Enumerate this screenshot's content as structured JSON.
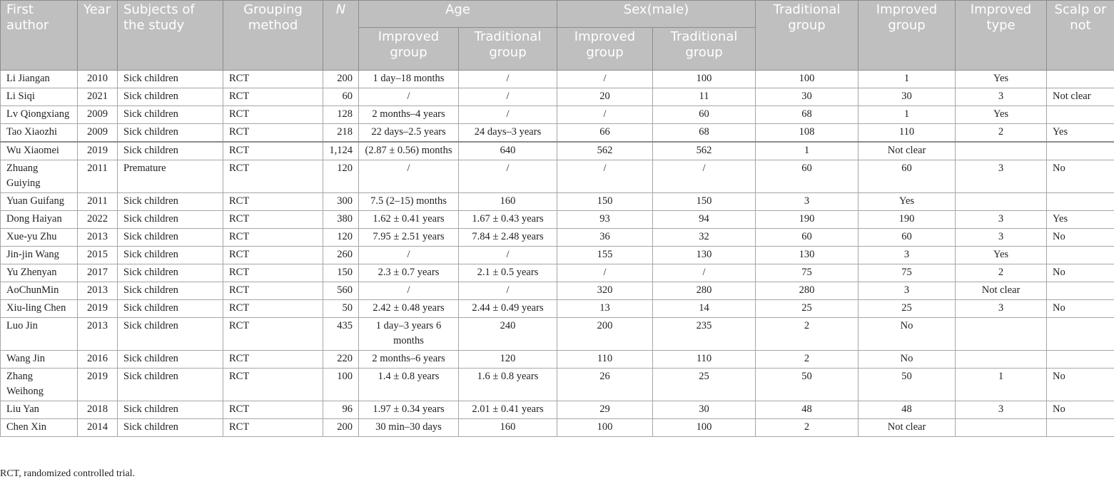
{
  "headers": {
    "first_author": "First author",
    "year": "Year",
    "subjects": "Subjects of the study",
    "grouping": "Grouping method",
    "n": "N",
    "age": "Age",
    "sex": "Sex(male)",
    "traditional_group": "Traditional group",
    "improved_group": "Improved group",
    "improved_type": "Improved type",
    "scalp": "Scalp or not",
    "age_improved": "Improved group",
    "age_traditional": "Traditional group",
    "sex_improved": "Improved group",
    "sex_traditional": "Traditional group"
  },
  "rows": [
    {
      "author": "Li Jiangan",
      "year": "2010",
      "subjects": "Sick children",
      "grouping": "RCT",
      "n": "200",
      "age_imp": "1 day–18 months",
      "age_trad": "/",
      "sex_imp": "/",
      "sex_trad": "100",
      "trad": "100",
      "imp": "1",
      "type": "Yes",
      "scalp": ""
    },
    {
      "author": "Li Siqi",
      "year": "2021",
      "subjects": "Sick children",
      "grouping": "RCT",
      "n": "60",
      "age_imp": "/",
      "age_trad": "/",
      "sex_imp": "20",
      "sex_trad": "11",
      "trad": "30",
      "imp": "30",
      "type": "3",
      "scalp": "Not clear"
    },
    {
      "author": "Lv Qiongxiang",
      "year": "2009",
      "subjects": "Sick children",
      "grouping": "RCT",
      "n": "128",
      "age_imp": "2 months–4 years",
      "age_trad": "/",
      "sex_imp": "/",
      "sex_trad": "60",
      "trad": "68",
      "imp": "1",
      "type": "Yes",
      "scalp": ""
    },
    {
      "author": "Tao Xiaozhi",
      "year": "2009",
      "subjects": "Sick children",
      "grouping": "RCT",
      "n": "218",
      "age_imp": "22 days–2.5 years",
      "age_trad": "24 days–3 years",
      "sex_imp": "66",
      "sex_trad": "68",
      "trad": "108",
      "imp": "110",
      "type": "2",
      "scalp": "Yes"
    },
    {
      "author": "Wu Xiaomei",
      "year": "2019",
      "subjects": "Sick children",
      "grouping": "RCT",
      "n": "1,124",
      "age_imp": "(2.87 ± 0.56) months",
      "age_trad": "640",
      "sex_imp": "562",
      "sex_trad": "562",
      "trad": "1",
      "imp": "Not clear",
      "type": "",
      "scalp": ""
    },
    {
      "author": "Zhuang Guiying",
      "year": "2011",
      "subjects": "Premature",
      "grouping": "RCT",
      "n": "120",
      "age_imp": "/",
      "age_trad": "/",
      "sex_imp": "/",
      "sex_trad": "/",
      "trad": "60",
      "imp": "60",
      "type": "3",
      "scalp": "No"
    },
    {
      "author": "Yuan Guifang",
      "year": "2011",
      "subjects": "Sick children",
      "grouping": "RCT",
      "n": "300",
      "age_imp": "7.5 (2–15) months",
      "age_trad": "160",
      "sex_imp": "150",
      "sex_trad": "150",
      "trad": "3",
      "imp": "Yes",
      "type": "",
      "scalp": ""
    },
    {
      "author": "Dong Haiyan",
      "year": "2022",
      "subjects": "Sick children",
      "grouping": "RCT",
      "n": "380",
      "age_imp": "1.62 ± 0.41 years",
      "age_trad": "1.67 ± 0.43 years",
      "sex_imp": "93",
      "sex_trad": "94",
      "trad": "190",
      "imp": "190",
      "type": "3",
      "scalp": "Yes"
    },
    {
      "author": "Xue-yu Zhu",
      "year": "2013",
      "subjects": "Sick children",
      "grouping": "RCT",
      "n": "120",
      "age_imp": "7.95 ± 2.51 years",
      "age_trad": "7.84 ± 2.48 years",
      "sex_imp": "36",
      "sex_trad": "32",
      "trad": "60",
      "imp": "60",
      "type": "3",
      "scalp": "No"
    },
    {
      "author": "Jin-jin Wang",
      "year": "2015",
      "subjects": "Sick children",
      "grouping": "RCT",
      "n": "260",
      "age_imp": "/",
      "age_trad": "/",
      "sex_imp": "155",
      "sex_trad": "130",
      "trad": "130",
      "imp": "3",
      "type": "Yes",
      "scalp": ""
    },
    {
      "author": "Yu Zhenyan",
      "year": "2017",
      "subjects": "Sick children",
      "grouping": "RCT",
      "n": "150",
      "age_imp": "2.3 ± 0.7 years",
      "age_trad": "2.1 ± 0.5 years",
      "sex_imp": "/",
      "sex_trad": "/",
      "trad": "75",
      "imp": "75",
      "type": "2",
      "scalp": "No"
    },
    {
      "author": "AoChunMin",
      "year": "2013",
      "subjects": "Sick children",
      "grouping": "RCT",
      "n": "560",
      "age_imp": "/",
      "age_trad": "/",
      "sex_imp": "320",
      "sex_trad": "280",
      "trad": "280",
      "imp": "3",
      "type": "Not clear",
      "scalp": ""
    },
    {
      "author": "Xiu-ling Chen",
      "year": "2019",
      "subjects": "Sick children",
      "grouping": "RCT",
      "n": "50",
      "age_imp": "2.42 ± 0.48 years",
      "age_trad": "2.44 ± 0.49 years",
      "sex_imp": "13",
      "sex_trad": "14",
      "trad": "25",
      "imp": "25",
      "type": "3",
      "scalp": "No"
    },
    {
      "author": "Luo Jin",
      "year": "2013",
      "subjects": "Sick children",
      "grouping": "RCT",
      "n": "435",
      "age_imp": "1 day–3 years 6 months",
      "age_trad": "240",
      "sex_imp": "200",
      "sex_trad": "235",
      "trad": "2",
      "imp": "No",
      "type": "",
      "scalp": ""
    },
    {
      "author": "Wang Jin",
      "year": "2016",
      "subjects": "Sick children",
      "grouping": "RCT",
      "n": "220",
      "age_imp": "2 months–6 years",
      "age_trad": "120",
      "sex_imp": "110",
      "sex_trad": "110",
      "trad": "2",
      "imp": "No",
      "type": "",
      "scalp": ""
    },
    {
      "author": "Zhang Weihong",
      "year": "2019",
      "subjects": "Sick children",
      "grouping": "RCT",
      "n": "100",
      "age_imp": "1.4 ± 0.8 years",
      "age_trad": "1.6 ± 0.8 years",
      "sex_imp": "26",
      "sex_trad": "25",
      "trad": "50",
      "imp": "50",
      "type": "1",
      "scalp": "No"
    },
    {
      "author": "Liu Yan",
      "year": "2018",
      "subjects": "Sick children",
      "grouping": "RCT",
      "n": "96",
      "age_imp": "1.97 ± 0.34 years",
      "age_trad": "2.01 ± 0.41 years",
      "sex_imp": "29",
      "sex_trad": "30",
      "trad": "48",
      "imp": "48",
      "type": "3",
      "scalp": "No"
    },
    {
      "author": "Chen Xin",
      "year": "2014",
      "subjects": "Sick children",
      "grouping": "RCT",
      "n": "200",
      "age_imp": "30 min–30 days",
      "age_trad": "160",
      "sex_imp": "100",
      "sex_trad": "100",
      "trad": "2",
      "imp": "Not clear",
      "type": "",
      "scalp": ""
    }
  ],
  "footnote": "RCT, randomized controlled trial."
}
